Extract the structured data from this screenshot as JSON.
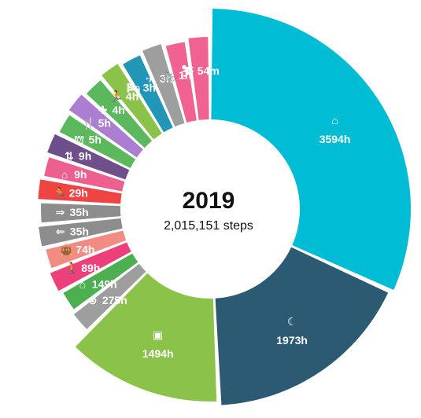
{
  "center": {
    "year": "2019",
    "steps": "2,015,151 steps"
  },
  "chart_data": {
    "type": "pie",
    "variant": "donut",
    "unit": "hours",
    "total_steps": "2,015,151",
    "segments": [
      {
        "label": "3594h",
        "value": 3594,
        "icon": "home-icon",
        "color": "#00bcd4"
      },
      {
        "label": "1973h",
        "value": 1973,
        "icon": "moon-icon",
        "color": "#2d5a73"
      },
      {
        "label": "1494h",
        "value": 1494,
        "icon": "briefcase-icon",
        "color": "#8bc34a"
      },
      {
        "label": "275h",
        "value": 275,
        "icon": "car-wheel-icon",
        "color": "#9e9e9e"
      },
      {
        "label": "149h",
        "value": 149,
        "icon": "home-icon",
        "color": "#4caf50"
      },
      {
        "label": "89h",
        "value": 89,
        "icon": "walking-icon",
        "color": "#ec407a"
      },
      {
        "label": "74h",
        "value": 74,
        "icon": "shopping-bag-icon",
        "color": "#f28b82"
      },
      {
        "label": "35h",
        "value": 35,
        "icon": "commute-left-icon",
        "color": "#8d8d8d"
      },
      {
        "label": "35h",
        "value": 35,
        "icon": "commute-right-icon",
        "color": "#8d8d8d"
      },
      {
        "label": "29h",
        "value": 29,
        "icon": "running-icon",
        "color": "#ef4444"
      },
      {
        "label": "9h",
        "value": 9,
        "icon": "home-icon",
        "color": "#ec5f8f"
      },
      {
        "label": "9h",
        "value": 9,
        "icon": "elevator-icon",
        "color": "#6f4e8c"
      },
      {
        "label": "5h",
        "value": 5,
        "icon": "school-icon",
        "color": "#5cb85c"
      },
      {
        "label": "5h",
        "value": 5,
        "icon": "restaurant-icon",
        "color": "#ab7ed1"
      },
      {
        "label": "4h",
        "value": 4,
        "icon": "medical-icon",
        "color": "#5cb85c"
      },
      {
        "label": "4h",
        "value": 4,
        "icon": "running-icon",
        "color": "#8bc34a"
      },
      {
        "label": "3h",
        "value": 3,
        "icon": "bed-icon",
        "color": "#2196b6"
      },
      {
        "label": "3h",
        "value": 3,
        "icon": "airplane-icon",
        "color": "#9e9e9e"
      },
      {
        "label": "1h",
        "value": 1,
        "icon": "bicycle-icon",
        "color": "#f06292"
      },
      {
        "label": "54m",
        "value": 0.9,
        "icon": "skiing-icon",
        "color": "#f06292"
      }
    ]
  }
}
